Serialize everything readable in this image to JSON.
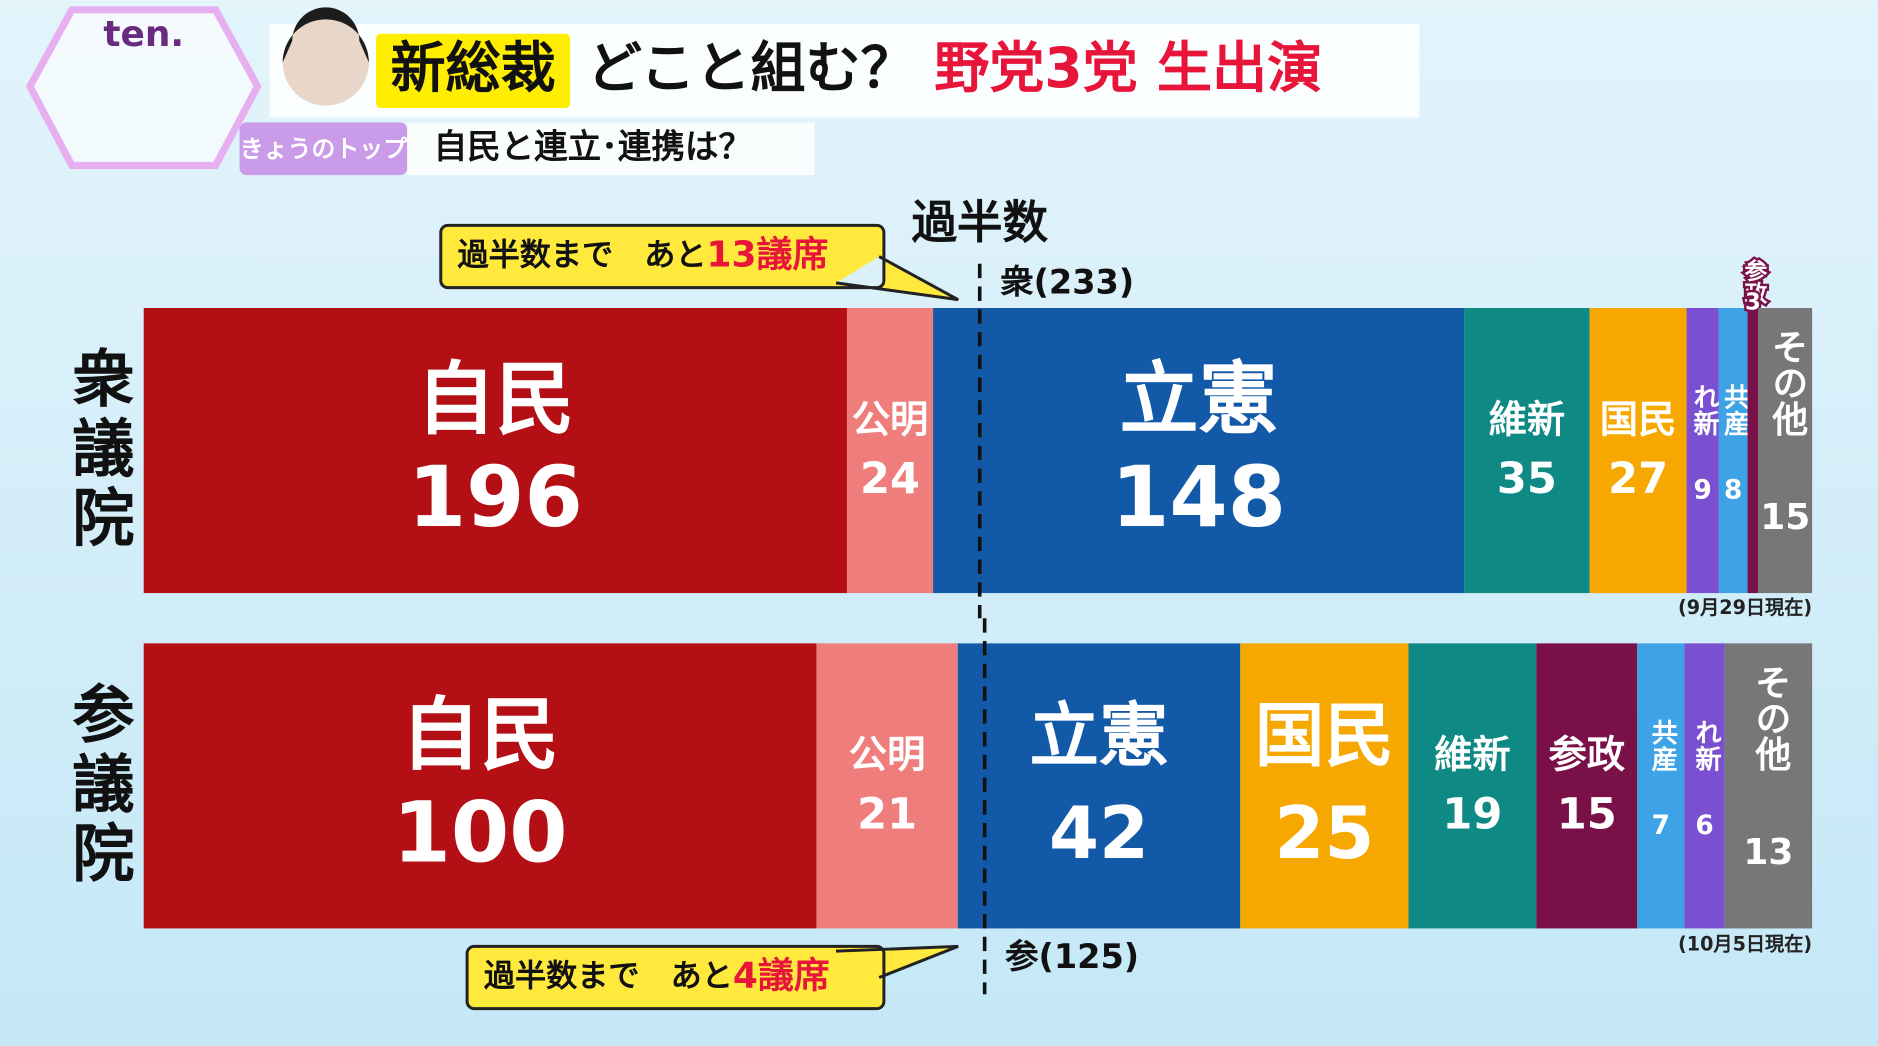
{
  "header": {
    "logo": "ten.",
    "highlight": "新総裁",
    "title": "どこと組む？",
    "title_red": "野党3党 生出演",
    "tag": "きょうのトップ",
    "subtitle": "自民と連立･連携は？"
  },
  "majority_title": "過半数",
  "chart_data": [
    {
      "type": "stacked-bar",
      "row_label": "衆議院",
      "categories": [
        "自民",
        "公明",
        "立憲",
        "維新",
        "国民",
        "れ新",
        "共産",
        "参政",
        "その他"
      ],
      "values": [
        196,
        24,
        148,
        35,
        27,
        9,
        8,
        3,
        15
      ],
      "colors": [
        "#b30f14",
        "#ef7d7b",
        "#1259a8",
        "#0e8983",
        "#f6a700",
        "#7a4fd0",
        "#3da2e6",
        "#7a1048",
        "#777777"
      ],
      "xlim": [
        0,
        465
      ],
      "majority": {
        "value": 233,
        "label": "衆(233)"
      },
      "callout": {
        "text": "過半数まで　あと",
        "value": 13,
        "unit": "議席"
      },
      "note": "(9月29日現在)"
    },
    {
      "type": "stacked-bar",
      "row_label": "参議院",
      "categories": [
        "自民",
        "公明",
        "立憲",
        "国民",
        "維新",
        "参政",
        "共産",
        "れ新",
        "その他"
      ],
      "values": [
        100,
        21,
        42,
        25,
        19,
        15,
        7,
        6,
        13
      ],
      "colors": [
        "#b30f14",
        "#ef7d7b",
        "#1259a8",
        "#f6a700",
        "#0e8983",
        "#7a1048",
        "#3da2e6",
        "#7a4fd0",
        "#777777"
      ],
      "xlim": [
        0,
        248
      ],
      "majority": {
        "value": 125,
        "label": "参(125)"
      },
      "callout": {
        "text": "過半数まで　あと",
        "value": 4,
        "unit": "議席"
      },
      "note": "(10月5日現在)"
    }
  ]
}
